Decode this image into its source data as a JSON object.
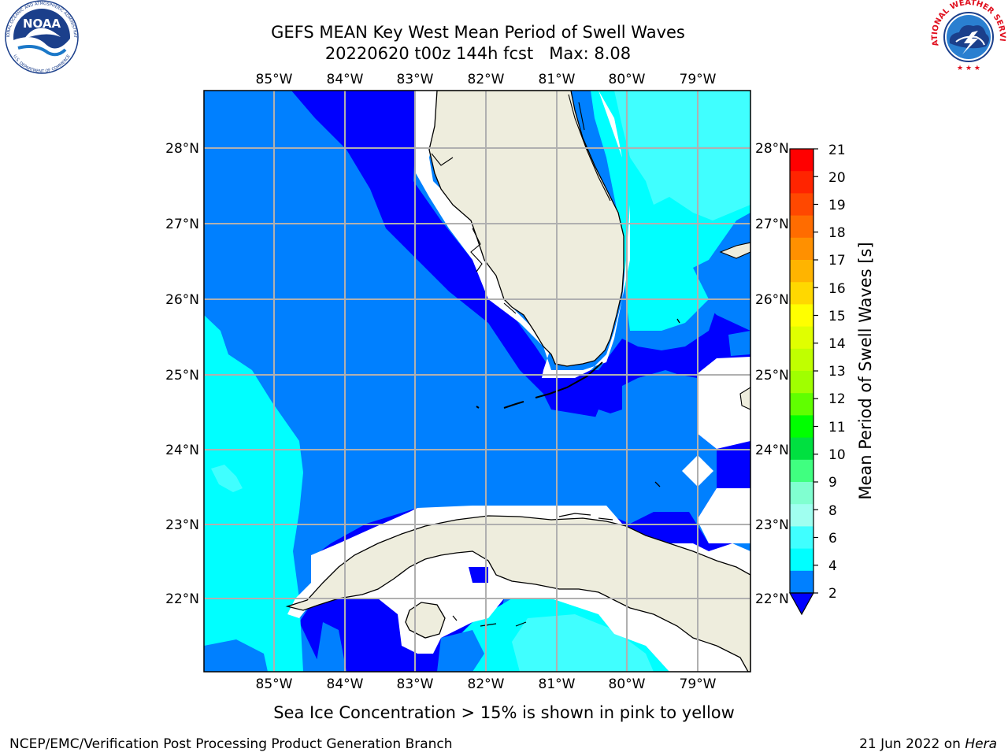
{
  "header": {
    "title_line1": "GEFS MEAN Key West Mean Period of Swell Waves",
    "title_line2": "20220620 t00z 144h fcst   Max: 8.08"
  },
  "logos": {
    "noaa": {
      "word": "NOAA",
      "ring_text": "NATIONAL OCEANIC AND ATMOSPHERIC ADMINISTRATION",
      "bottom_text": "U.S. DEPARTMENT OF COMMERCE"
    },
    "nws": {
      "ring_text": "NATIONAL WEATHER SERVICE"
    }
  },
  "map": {
    "lon_labels": [
      "85°W",
      "84°W",
      "83°W",
      "82°W",
      "81°W",
      "80°W",
      "79°W"
    ],
    "lat_labels": [
      "28°N",
      "27°N",
      "26°N",
      "25°N",
      "24°N",
      "23°N",
      "22°N"
    ],
    "land_color": "#eeeddd",
    "grid_color": "#b0b0b0",
    "colors": {
      "period_2_4": "#0080ff",
      "period_4_6": "#00ffff",
      "period_6_8": "#40ffff",
      "below_2": "#0000ff",
      "missing": "#ffffff"
    }
  },
  "colorbar": {
    "label": "Mean Period of Swell Waves [s]",
    "ticks": [
      "21",
      "20",
      "19",
      "18",
      "17",
      "16",
      "15",
      "14",
      "13",
      "12",
      "11",
      "10",
      "9",
      "8",
      "6",
      "4",
      "2"
    ],
    "colors": [
      "#ff0000",
      "#ff2400",
      "#ff4800",
      "#ff6c00",
      "#ff9000",
      "#ffb400",
      "#ffd800",
      "#ffff00",
      "#e0ff00",
      "#c0ff00",
      "#a0ff00",
      "#60ff00",
      "#00ff00",
      "#00e040",
      "#40ff80",
      "#80ffd0",
      "#a0fff0",
      "#40ffff",
      "#00ffff",
      "#0080ff"
    ],
    "extend_color": "#0000ff"
  },
  "footer": {
    "caption": "Sea Ice Concentration > 15% is shown in pink to yellow",
    "credit": "NCEP/EMC/Verification Post Processing Product Generation Branch",
    "date": "21 Jun 2022 on ",
    "host": "Hera"
  }
}
